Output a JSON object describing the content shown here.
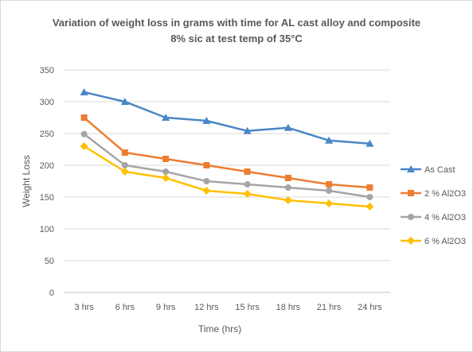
{
  "chart_data": {
    "type": "line",
    "title": "Variation of weight loss in grams with time for AL cast alloy and composite 8% sic at test temp of 35°C",
    "title_lines": [
      "Variation of weight loss in grams with time for AL cast alloy and composite",
      "8% sic at test temp of 35°C"
    ],
    "xlabel": "Time (hrs)",
    "ylabel": "Weight Loss",
    "categories": [
      "3 hrs",
      "6 hrs",
      "9 hrs",
      "12 hrs",
      "15 hrs",
      "18 hrs",
      "21 hrs",
      "24 hrs"
    ],
    "ylim": [
      0,
      350
    ],
    "yticks": [
      0,
      50,
      100,
      150,
      200,
      250,
      300,
      350
    ],
    "grid": true,
    "legend_position": "right",
    "series": [
      {
        "name": "As Cast",
        "color": "#4a86c5",
        "marker": "triangle",
        "values": [
          315,
          300,
          275,
          270,
          254,
          259,
          239,
          234
        ]
      },
      {
        "name": "2 % Al2O3",
        "color": "#ed7d31",
        "marker": "square",
        "values": [
          275,
          220,
          210,
          200,
          190,
          180,
          170,
          165
        ]
      },
      {
        "name": "4 % Al2O3",
        "color": "#a5a5a5",
        "marker": "circle",
        "values": [
          249,
          200,
          190,
          175,
          170,
          165,
          160,
          150
        ]
      },
      {
        "name": "6 % Al2O3",
        "color": "#ffc000",
        "marker": "diamond",
        "values": [
          230,
          190,
          180,
          160,
          155,
          145,
          140,
          135
        ]
      }
    ]
  }
}
